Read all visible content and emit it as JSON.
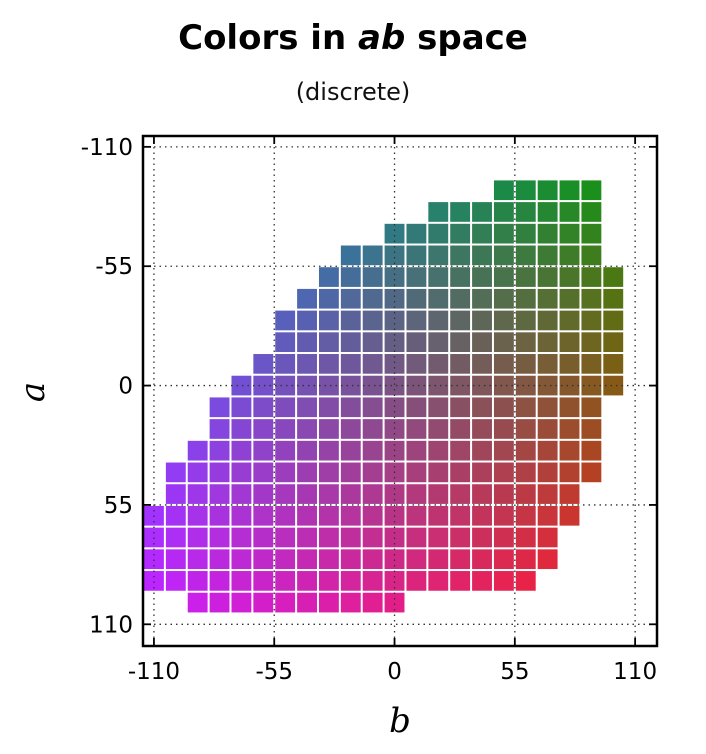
{
  "chart_data": {
    "type": "heatmap",
    "title_parts": [
      "Colors in ",
      "ab",
      " space"
    ],
    "subtitle": "(discrete)",
    "xlabel": "b",
    "ylabel": "a",
    "xlim": [
      -115,
      120
    ],
    "ylim": [
      -115,
      120
    ],
    "y_inverted": true,
    "grid": true,
    "grid_style": "dotted",
    "x_ticks": [
      -110,
      -55,
      0,
      55,
      110
    ],
    "y_ticks": [
      -110,
      -55,
      0,
      55,
      110
    ],
    "x_tick_labels": [
      "-110",
      "-55",
      "0",
      "55",
      "110"
    ],
    "y_tick_labels": [
      "-110",
      "-55",
      "0",
      "55",
      "110"
    ],
    "cell_size": 10,
    "cell_rows": [
      {
        "a": -90,
        "b_range": [
          50,
          90
        ]
      },
      {
        "a": -80,
        "b_range": [
          20,
          90
        ]
      },
      {
        "a": -70,
        "b_range": [
          0,
          90
        ]
      },
      {
        "a": -60,
        "b_range": [
          -20,
          90
        ]
      },
      {
        "a": -50,
        "b_range": [
          -30,
          100
        ]
      },
      {
        "a": -40,
        "b_range": [
          -40,
          100
        ]
      },
      {
        "a": -30,
        "b_range": [
          -50,
          100
        ]
      },
      {
        "a": -20,
        "b_range": [
          -50,
          100
        ]
      },
      {
        "a": -10,
        "b_range": [
          -60,
          100
        ]
      },
      {
        "a": 0,
        "b_range": [
          -70,
          100
        ]
      },
      {
        "a": 10,
        "b_range": [
          -80,
          90
        ]
      },
      {
        "a": 20,
        "b_range": [
          -80,
          90
        ]
      },
      {
        "a": 30,
        "b_range": [
          -90,
          90
        ]
      },
      {
        "a": 40,
        "b_range": [
          -100,
          90
        ]
      },
      {
        "a": 50,
        "b_range": [
          -100,
          80
        ]
      },
      {
        "a": 60,
        "b_range": [
          -110,
          80
        ]
      },
      {
        "a": 70,
        "b_range": [
          -110,
          70
        ]
      },
      {
        "a": 80,
        "b_range": [
          -110,
          70
        ]
      },
      {
        "a": 90,
        "b_range": [
          -110,
          60
        ]
      },
      {
        "a": 100,
        "b_range": [
          -90,
          0
        ]
      }
    ],
    "corner_colors": {
      "low_b_low_a": "#1f77ff",
      "high_b_low_a": "#1a9010",
      "low_b_high_a": "#c520ff",
      "high_b_high_a": "#ff1d1d"
    }
  }
}
